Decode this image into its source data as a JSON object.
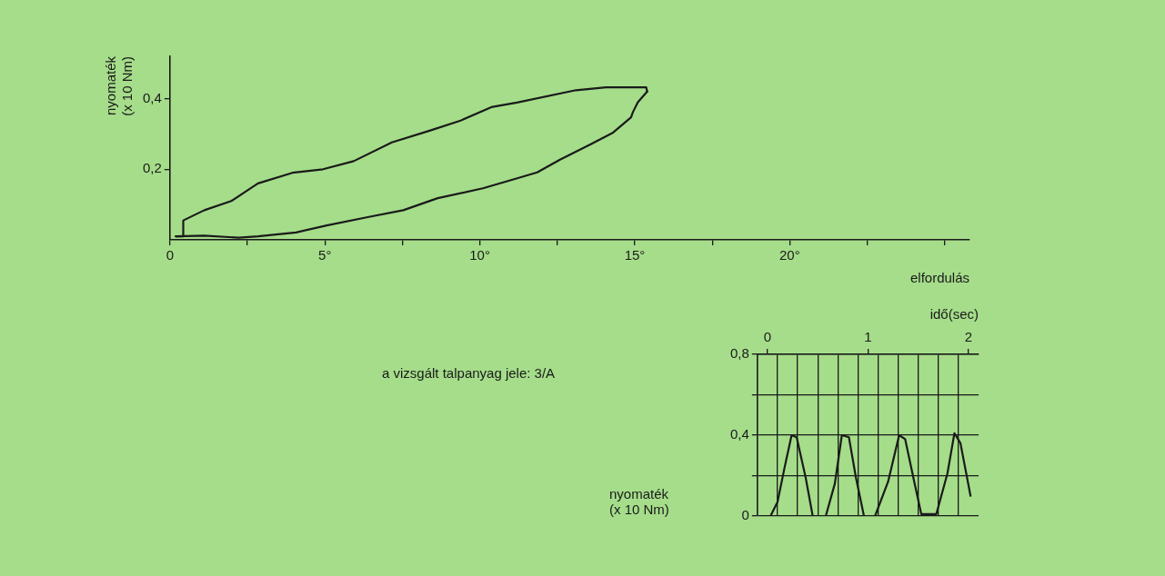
{
  "chart_data": [
    {
      "type": "line",
      "xlabel": "elfordulás",
      "ylabel": "nyomaték\n(x 10 Nm)",
      "xlim": [
        0,
        25.8
      ],
      "xticks": [
        {
          "value": 0,
          "label": "0"
        },
        {
          "value": 2.5,
          "label": null
        },
        {
          "value": 5,
          "label": "5°"
        },
        {
          "value": 7.5,
          "label": null
        },
        {
          "value": 10,
          "label": "10°"
        },
        {
          "value": 12.5,
          "label": null
        },
        {
          "value": 15,
          "label": "15°"
        },
        {
          "value": 17.5,
          "label": null
        },
        {
          "value": 20,
          "label": "20°"
        },
        {
          "value": 22.5,
          "label": null
        },
        {
          "value": 25,
          "label": null
        }
      ],
      "ylim": [
        0,
        0.52
      ],
      "yticks": [
        {
          "value": 0.2,
          "label": "0,2"
        },
        {
          "value": 0.4,
          "label": "0,4"
        }
      ],
      "grid": false,
      "legend": false,
      "marker": "none",
      "line_style": "solid",
      "annotations": [
        "a vizsgált talpanyag jele: 3/A"
      ],
      "series": [
        {
          "color": "#1a1a1a",
          "x": [
            0.19,
            0.43,
            0.43,
            1.11,
            1.98,
            2.84,
            3.95,
            4.94,
            5.93,
            7.16,
            8.4,
            9.38,
            10.37,
            11.2,
            13.1,
            14.07,
            15.37,
            15.4
          ],
          "values": [
            0.01,
            0.01,
            0.055,
            0.084,
            0.11,
            0.16,
            0.19,
            0.2,
            0.223,
            0.276,
            0.31,
            0.338,
            0.376,
            0.389,
            0.424,
            0.432,
            0.432,
            0.42
          ]
        },
        {
          "color": "#1a1a1a",
          "x": [
            0.19,
            1.11,
            2.22,
            2.84,
            4.07,
            5.06,
            6.42,
            7.53,
            8.64,
            10.1,
            11.23,
            11.85,
            12.6,
            13.58,
            14.3,
            14.88,
            14.94,
            15.1,
            15.4
          ],
          "values": [
            0.01,
            0.012,
            0.006,
            0.01,
            0.021,
            0.041,
            0.065,
            0.084,
            0.118,
            0.146,
            0.175,
            0.191,
            0.228,
            0.271,
            0.304,
            0.347,
            0.362,
            0.39,
            0.42
          ]
        }
      ]
    },
    {
      "type": "line",
      "xlabel": "idő(sec)",
      "ylabel": "nyomaték\n(x 10 Nm)",
      "xlim": [
        -0.1,
        2.1
      ],
      "xticks": [
        0,
        {
          "value": 0.1,
          "label": null
        },
        {
          "value": 0.3,
          "label": null
        },
        {
          "value": 0.5,
          "label": null
        },
        {
          "value": 0.7,
          "label": null
        },
        {
          "value": 0.9,
          "label": null
        },
        1,
        {
          "value": 1.1,
          "label": null
        },
        {
          "value": 1.3,
          "label": null
        },
        {
          "value": 1.5,
          "label": null
        },
        {
          "value": 1.7,
          "label": null
        },
        {
          "value": 1.9,
          "label": null
        },
        2
      ],
      "ylim": [
        0,
        0.8
      ],
      "yticks": [
        {
          "value": 0,
          "label": "0"
        },
        {
          "value": 0.2,
          "label": null
        },
        {
          "value": 0.4,
          "label": "0,4"
        },
        {
          "value": 0.6,
          "label": null
        },
        {
          "value": 0.8,
          "label": "0,8"
        }
      ],
      "grid": true,
      "legend": false,
      "marker": "none",
      "line_style": "solid",
      "series": [
        {
          "color": "#1a1a1a",
          "x": [
            0.03,
            0.1,
            0.17,
            0.24,
            0.29,
            0.38,
            0.45,
            0.58,
            0.67,
            0.74,
            0.81,
            0.88,
            0.96,
            1.07,
            1.2,
            1.31,
            1.37,
            1.46,
            1.53,
            1.68,
            1.79,
            1.86,
            1.92,
            2.02
          ],
          "values": [
            0,
            0.07,
            0.24,
            0.4,
            0.39,
            0.19,
            0,
            0,
            0.16,
            0.4,
            0.39,
            0.19,
            0,
            0,
            0.17,
            0.4,
            0.38,
            0.17,
            0.01,
            0.01,
            0.21,
            0.41,
            0.36,
            0.1
          ]
        }
      ]
    }
  ]
}
